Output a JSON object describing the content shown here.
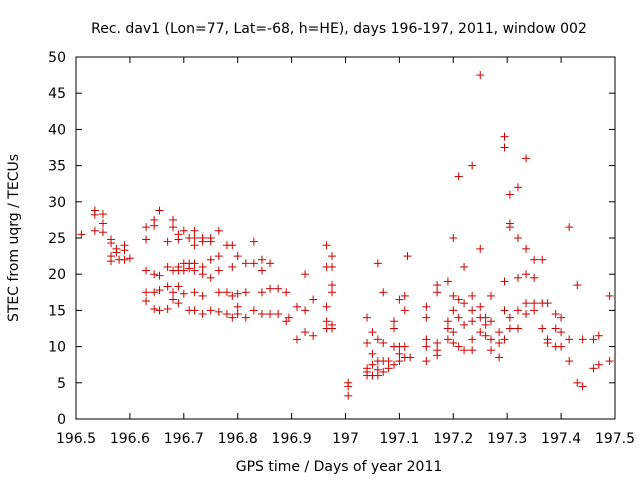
{
  "chart_data": {
    "type": "scatter",
    "title": "Rec. dav1 (Lon=77, Lat=-68, h=HE), days 196-197, 2011, window 002",
    "xlabel": "GPS time / Days of year 2011",
    "ylabel": "STEC from uqrg / TECUs",
    "xlim": [
      196.5,
      197.5
    ],
    "ylim": [
      0,
      50
    ],
    "xticks": [
      "196.5",
      "196.6",
      "196.7",
      "196.8",
      "196.9",
      "197",
      "197.1",
      "197.2",
      "197.3",
      "197.4",
      "197.5"
    ],
    "yticks": [
      "0",
      "5",
      "10",
      "15",
      "20",
      "25",
      "30",
      "35",
      "40",
      "45",
      "50"
    ],
    "grid": false,
    "legend": "none",
    "marker": "+",
    "color": "#cc0000",
    "series": [
      {
        "points": [
          [
            196.51,
            25.5
          ],
          [
            196.535,
            28.8
          ],
          [
            196.535,
            28.2
          ],
          [
            196.535,
            26.0
          ],
          [
            196.55,
            28.3
          ],
          [
            196.55,
            27.0
          ],
          [
            196.55,
            25.8
          ],
          [
            196.565,
            24.8
          ],
          [
            196.565,
            24.3
          ],
          [
            196.565,
            22.5
          ],
          [
            196.565,
            21.8
          ],
          [
            196.575,
            23.5
          ],
          [
            196.575,
            23.0
          ],
          [
            196.58,
            22.0
          ],
          [
            196.59,
            24.0
          ],
          [
            196.59,
            23.3
          ],
          [
            196.59,
            22.0
          ],
          [
            196.6,
            22.2
          ],
          [
            196.63,
            26.5
          ],
          [
            196.63,
            24.8
          ],
          [
            196.63,
            20.5
          ],
          [
            196.63,
            17.5
          ],
          [
            196.63,
            16.3
          ],
          [
            196.645,
            27.5
          ],
          [
            196.645,
            26.7
          ],
          [
            196.645,
            20.0
          ],
          [
            196.645,
            17.5
          ],
          [
            196.645,
            15.2
          ],
          [
            196.655,
            28.8
          ],
          [
            196.655,
            19.8
          ],
          [
            196.655,
            17.8
          ],
          [
            196.655,
            15.0
          ],
          [
            196.67,
            24.5
          ],
          [
            196.67,
            21.0
          ],
          [
            196.67,
            18.3
          ],
          [
            196.67,
            15.2
          ],
          [
            196.68,
            27.5
          ],
          [
            196.68,
            26.5
          ],
          [
            196.68,
            20.5
          ],
          [
            196.68,
            17.5
          ],
          [
            196.68,
            16.5
          ],
          [
            196.69,
            25.5
          ],
          [
            196.69,
            24.8
          ],
          [
            196.69,
            21.0
          ],
          [
            196.69,
            20.5
          ],
          [
            196.69,
            18.3
          ],
          [
            196.69,
            16.0
          ],
          [
            196.7,
            26.0
          ],
          [
            196.7,
            21.5
          ],
          [
            196.7,
            20.5
          ],
          [
            196.7,
            17.3
          ],
          [
            196.71,
            25.0
          ],
          [
            196.71,
            21.5
          ],
          [
            196.71,
            20.8
          ],
          [
            196.71,
            15.0
          ],
          [
            196.72,
            26.0
          ],
          [
            196.72,
            25.0
          ],
          [
            196.72,
            24.0
          ],
          [
            196.72,
            21.5
          ],
          [
            196.72,
            20.5
          ],
          [
            196.72,
            17.5
          ],
          [
            196.72,
            15.0
          ],
          [
            196.735,
            25.0
          ],
          [
            196.735,
            24.5
          ],
          [
            196.735,
            21.0
          ],
          [
            196.735,
            20.0
          ],
          [
            196.735,
            17.0
          ],
          [
            196.735,
            14.5
          ],
          [
            196.75,
            25.0
          ],
          [
            196.75,
            24.5
          ],
          [
            196.75,
            22.0
          ],
          [
            196.75,
            19.5
          ],
          [
            196.75,
            15.0
          ],
          [
            196.765,
            26.0
          ],
          [
            196.765,
            22.5
          ],
          [
            196.765,
            20.5
          ],
          [
            196.765,
            17.5
          ],
          [
            196.765,
            14.8
          ],
          [
            196.78,
            24.0
          ],
          [
            196.78,
            17.5
          ],
          [
            196.78,
            14.5
          ],
          [
            196.79,
            24.0
          ],
          [
            196.79,
            21.0
          ],
          [
            196.79,
            17.0
          ],
          [
            196.79,
            14.0
          ],
          [
            196.8,
            22.5
          ],
          [
            196.8,
            17.3
          ],
          [
            196.8,
            15.5
          ],
          [
            196.8,
            14.5
          ],
          [
            196.815,
            21.5
          ],
          [
            196.815,
            17.5
          ],
          [
            196.815,
            14.0
          ],
          [
            196.83,
            24.5
          ],
          [
            196.83,
            21.5
          ],
          [
            196.83,
            15.0
          ],
          [
            196.845,
            22.0
          ],
          [
            196.845,
            20.5
          ],
          [
            196.845,
            17.5
          ],
          [
            196.845,
            14.5
          ],
          [
            196.86,
            21.5
          ],
          [
            196.86,
            18.0
          ],
          [
            196.86,
            14.5
          ],
          [
            196.875,
            18.0
          ],
          [
            196.875,
            14.5
          ],
          [
            196.89,
            17.5
          ],
          [
            196.89,
            13.5
          ],
          [
            196.895,
            14.0
          ],
          [
            196.91,
            15.5
          ],
          [
            196.91,
            11.0
          ],
          [
            196.925,
            20.0
          ],
          [
            196.925,
            15.0
          ],
          [
            196.925,
            12.0
          ],
          [
            196.94,
            16.5
          ],
          [
            196.94,
            11.5
          ],
          [
            196.965,
            24.0
          ],
          [
            196.965,
            21.0
          ],
          [
            196.965,
            15.5
          ],
          [
            196.965,
            13.5
          ],
          [
            196.965,
            12.5
          ],
          [
            196.975,
            22.5
          ],
          [
            196.975,
            21.0
          ],
          [
            196.975,
            18.5
          ],
          [
            196.975,
            17.5
          ],
          [
            196.975,
            13.0
          ],
          [
            196.975,
            12.5
          ],
          [
            197.005,
            5.0
          ],
          [
            197.005,
            4.5
          ],
          [
            197.005,
            3.2
          ],
          [
            197.04,
            14.0
          ],
          [
            197.04,
            10.5
          ],
          [
            197.04,
            7.0
          ],
          [
            197.04,
            6.5
          ],
          [
            197.04,
            6.0
          ],
          [
            197.05,
            12.0
          ],
          [
            197.05,
            9.0
          ],
          [
            197.05,
            7.5
          ],
          [
            197.05,
            6.0
          ],
          [
            197.06,
            21.5
          ],
          [
            197.06,
            11.0
          ],
          [
            197.06,
            8.0
          ],
          [
            197.06,
            6.8
          ],
          [
            197.06,
            6.0
          ],
          [
            197.07,
            17.5
          ],
          [
            197.07,
            10.5
          ],
          [
            197.07,
            8.0
          ],
          [
            197.07,
            6.5
          ],
          [
            197.08,
            8.0
          ],
          [
            197.08,
            7.0
          ],
          [
            197.09,
            13.5
          ],
          [
            197.09,
            12.5
          ],
          [
            197.09,
            10.0
          ],
          [
            197.09,
            7.5
          ],
          [
            197.1,
            16.5
          ],
          [
            197.1,
            10.0
          ],
          [
            197.1,
            9.0
          ],
          [
            197.1,
            8.0
          ],
          [
            197.11,
            17.0
          ],
          [
            197.11,
            15.0
          ],
          [
            197.11,
            10.0
          ],
          [
            197.11,
            8.5
          ],
          [
            197.115,
            22.5
          ],
          [
            197.12,
            8.5
          ],
          [
            197.15,
            15.5
          ],
          [
            197.15,
            14.0
          ],
          [
            197.15,
            11.0
          ],
          [
            197.15,
            10.0
          ],
          [
            197.15,
            8.0
          ],
          [
            197.17,
            18.5
          ],
          [
            197.17,
            17.5
          ],
          [
            197.17,
            10.5
          ],
          [
            197.17,
            9.5
          ],
          [
            197.17,
            8.8
          ],
          [
            197.19,
            19.0
          ],
          [
            197.19,
            13.5
          ],
          [
            197.19,
            12.5
          ],
          [
            197.19,
            11.0
          ],
          [
            197.2,
            25.0
          ],
          [
            197.2,
            17.0
          ],
          [
            197.2,
            15.0
          ],
          [
            197.2,
            12.0
          ],
          [
            197.2,
            10.5
          ],
          [
            197.21,
            33.5
          ],
          [
            197.21,
            16.5
          ],
          [
            197.21,
            14.0
          ],
          [
            197.21,
            10.0
          ],
          [
            197.22,
            21.0
          ],
          [
            197.22,
            16.0
          ],
          [
            197.22,
            13.0
          ],
          [
            197.22,
            9.5
          ],
          [
            197.235,
            35.0
          ],
          [
            197.235,
            17.0
          ],
          [
            197.235,
            15.0
          ],
          [
            197.235,
            13.5
          ],
          [
            197.235,
            11.0
          ],
          [
            197.235,
            9.5
          ],
          [
            197.25,
            47.5
          ],
          [
            197.25,
            23.5
          ],
          [
            197.25,
            15.5
          ],
          [
            197.25,
            14.0
          ],
          [
            197.25,
            12.0
          ],
          [
            197.26,
            14.0
          ],
          [
            197.26,
            13.0
          ],
          [
            197.26,
            11.5
          ],
          [
            197.27,
            17.0
          ],
          [
            197.27,
            13.5
          ],
          [
            197.27,
            11.0
          ],
          [
            197.27,
            9.5
          ],
          [
            197.285,
            12.0
          ],
          [
            197.285,
            10.5
          ],
          [
            197.285,
            8.5
          ],
          [
            197.295,
            39.0
          ],
          [
            197.295,
            37.5
          ],
          [
            197.295,
            19.0
          ],
          [
            197.295,
            15.0
          ],
          [
            197.295,
            11.0
          ],
          [
            197.305,
            31.0
          ],
          [
            197.305,
            27.0
          ],
          [
            197.305,
            26.5
          ],
          [
            197.305,
            14.0
          ],
          [
            197.305,
            12.5
          ],
          [
            197.32,
            32.0
          ],
          [
            197.32,
            25.0
          ],
          [
            197.32,
            19.5
          ],
          [
            197.32,
            15.0
          ],
          [
            197.32,
            12.5
          ],
          [
            197.335,
            36.0
          ],
          [
            197.335,
            23.5
          ],
          [
            197.335,
            20.0
          ],
          [
            197.335,
            16.0
          ],
          [
            197.335,
            14.5
          ],
          [
            197.35,
            22.0
          ],
          [
            197.35,
            19.5
          ],
          [
            197.35,
            16.0
          ],
          [
            197.35,
            15.0
          ],
          [
            197.365,
            22.0
          ],
          [
            197.365,
            16.0
          ],
          [
            197.365,
            12.5
          ],
          [
            197.375,
            16.0
          ],
          [
            197.375,
            11.0
          ],
          [
            197.375,
            10.5
          ],
          [
            197.39,
            14.5
          ],
          [
            197.39,
            12.5
          ],
          [
            197.39,
            10.0
          ],
          [
            197.4,
            14.0
          ],
          [
            197.4,
            12.0
          ],
          [
            197.4,
            10.0
          ],
          [
            197.415,
            26.5
          ],
          [
            197.415,
            11.0
          ],
          [
            197.415,
            8.0
          ],
          [
            197.43,
            18.5
          ],
          [
            197.43,
            5.0
          ],
          [
            197.44,
            4.5
          ],
          [
            197.44,
            11.0
          ],
          [
            197.46,
            11.0
          ],
          [
            197.46,
            7.0
          ],
          [
            197.47,
            11.5
          ],
          [
            197.47,
            7.5
          ],
          [
            197.49,
            17.0
          ],
          [
            197.49,
            8.0
          ]
        ]
      }
    ]
  }
}
